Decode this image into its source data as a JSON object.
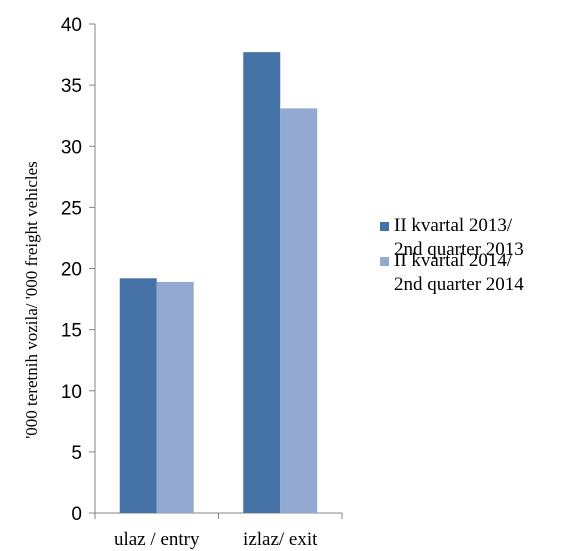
{
  "chart_data": {
    "type": "bar",
    "ylabel": "'000 teretnih vozila/ '000 freight vehicles",
    "categories": [
      "ulaz / entry",
      "izlaz/ exit"
    ],
    "series": [
      {
        "name_lines": [
          "II kvartal 2013/",
          "2nd quarter 2013"
        ],
        "values": [
          19.2,
          37.7
        ],
        "color": "#4572a7"
      },
      {
        "name_lines": [
          "II kvartal 2014/",
          "2nd quarter 2014"
        ],
        "values": [
          18.9,
          33.1
        ],
        "color": "#93a9d1"
      }
    ],
    "ylim": [
      0,
      40
    ],
    "yticks": [
      0,
      5,
      10,
      15,
      20,
      25,
      30,
      35,
      40
    ],
    "grid": false,
    "legend_position": "right"
  }
}
